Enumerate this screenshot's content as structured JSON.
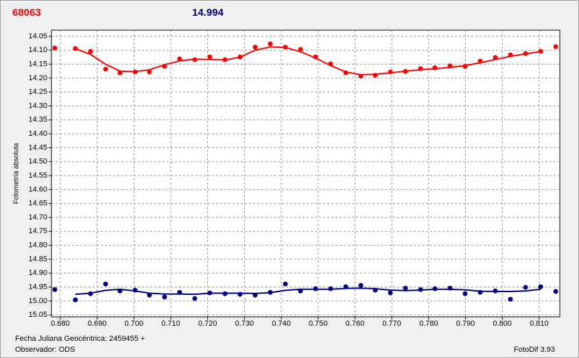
{
  "chart_data": {
    "type": "scatter",
    "header_left": "68063",
    "header_left_color": "#ff0000",
    "header_right": "14.994",
    "header_right_color": "#00007f",
    "ylabel": "Fotometría absoluta",
    "footer_date": "Fecha Juliana Geocéntrica: 2459455 +",
    "footer_observer": "Observador: ODS",
    "footer_version": "FotoDif 3.93",
    "xlim": [
      0.6776,
      0.8156
    ],
    "ylim": [
      14.028,
      15.057
    ],
    "y_reversed": true,
    "grid": true,
    "xticks": [
      {
        "value": 0.68,
        "label": "0.680"
      },
      {
        "value": 0.69,
        "label": "0.690"
      },
      {
        "value": 0.7,
        "label": "0.700"
      },
      {
        "value": 0.71,
        "label": "0.710"
      },
      {
        "value": 0.72,
        "label": "0.720"
      },
      {
        "value": 0.73,
        "label": "0.730"
      },
      {
        "value": 0.74,
        "label": "0.740"
      },
      {
        "value": 0.75,
        "label": "0.750"
      },
      {
        "value": 0.76,
        "label": "0.760"
      },
      {
        "value": 0.77,
        "label": "0.770"
      },
      {
        "value": 0.78,
        "label": "0.780"
      },
      {
        "value": 0.79,
        "label": "0.790"
      },
      {
        "value": 0.8,
        "label": "0.800"
      },
      {
        "value": 0.81,
        "label": "0.810"
      }
    ],
    "yticks": [
      14.05,
      {
        "value": 14.1,
        "label": "14.10"
      },
      14.15,
      {
        "value": 14.2,
        "label": "14.20"
      },
      14.25,
      {
        "value": 14.3,
        "label": "14.30"
      },
      14.35,
      {
        "value": 14.4,
        "label": "14.40"
      },
      14.45,
      {
        "value": 14.5,
        "label": "14.50"
      },
      14.55,
      {
        "value": 14.6,
        "label": "14.60"
      },
      14.65,
      {
        "value": 14.7,
        "label": "14.70"
      },
      14.75,
      {
        "value": 14.8,
        "label": "14.80"
      },
      14.85,
      {
        "value": 14.9,
        "label": "14.90"
      },
      14.95,
      {
        "value": 15.0,
        "label": "15.00"
      },
      15.05
    ],
    "x": [
      0.6785,
      0.6841,
      0.6882,
      0.6923,
      0.6962,
      0.7003,
      0.7042,
      0.7083,
      0.7124,
      0.7165,
      0.7206,
      0.7247,
      0.7288,
      0.7329,
      0.737,
      0.7411,
      0.7452,
      0.7493,
      0.7534,
      0.7575,
      0.7616,
      0.7655,
      0.7696,
      0.7737,
      0.7778,
      0.7817,
      0.7858,
      0.7899,
      0.794,
      0.7981,
      0.8022,
      0.8063,
      0.8104,
      0.8145
    ],
    "fit_x": [
      0.6841,
      0.6882,
      0.6923,
      0.6962,
      0.7003,
      0.7042,
      0.7083,
      0.7124,
      0.7165,
      0.7206,
      0.7247,
      0.7288,
      0.7329,
      0.737,
      0.7411,
      0.7452,
      0.7493,
      0.7534,
      0.7575,
      0.7616,
      0.7655,
      0.7696,
      0.7737,
      0.7778,
      0.7817,
      0.7858,
      0.7899,
      0.794,
      0.7981,
      0.8022,
      0.8063,
      0.8104
    ],
    "series": [
      {
        "color": "#ff0000",
        "values": [
          14.092,
          14.094,
          14.104,
          14.168,
          14.181,
          14.178,
          14.178,
          14.158,
          14.131,
          14.134,
          14.124,
          14.134,
          14.124,
          14.089,
          14.077,
          14.089,
          14.097,
          14.124,
          14.149,
          14.181,
          14.193,
          14.19,
          14.178,
          14.176,
          14.166,
          14.163,
          14.156,
          14.158,
          14.139,
          14.126,
          14.117,
          14.112,
          14.104,
          14.087
        ],
        "fit": [
          14.095,
          14.115,
          14.15,
          14.175,
          14.177,
          14.17,
          14.152,
          14.138,
          14.132,
          14.133,
          14.135,
          14.125,
          14.1,
          14.088,
          14.09,
          14.105,
          14.128,
          14.155,
          14.178,
          14.188,
          14.186,
          14.181,
          14.175,
          14.17,
          14.166,
          14.162,
          14.155,
          14.145,
          14.133,
          14.122,
          14.113,
          14.105
        ]
      },
      {
        "color": "#00007f",
        "values": [
          14.959,
          14.996,
          14.974,
          14.939,
          14.964,
          14.961,
          14.979,
          14.986,
          14.969,
          14.991,
          14.971,
          14.974,
          14.976,
          14.979,
          14.969,
          14.939,
          14.964,
          14.956,
          14.956,
          14.949,
          14.944,
          14.961,
          14.971,
          14.954,
          14.959,
          14.956,
          14.954,
          14.974,
          14.969,
          14.964,
          14.994,
          14.951,
          14.949,
          14.966
        ],
        "fit": [
          14.976,
          14.972,
          14.962,
          14.958,
          14.964,
          14.972,
          14.975,
          14.975,
          14.976,
          14.972,
          14.972,
          14.972,
          14.973,
          14.97,
          14.962,
          14.958,
          14.958,
          14.958,
          14.955,
          14.954,
          14.956,
          14.961,
          14.963,
          14.961,
          14.958,
          14.958,
          14.96,
          14.965,
          14.966,
          14.966,
          14.964,
          14.958
        ]
      }
    ]
  }
}
